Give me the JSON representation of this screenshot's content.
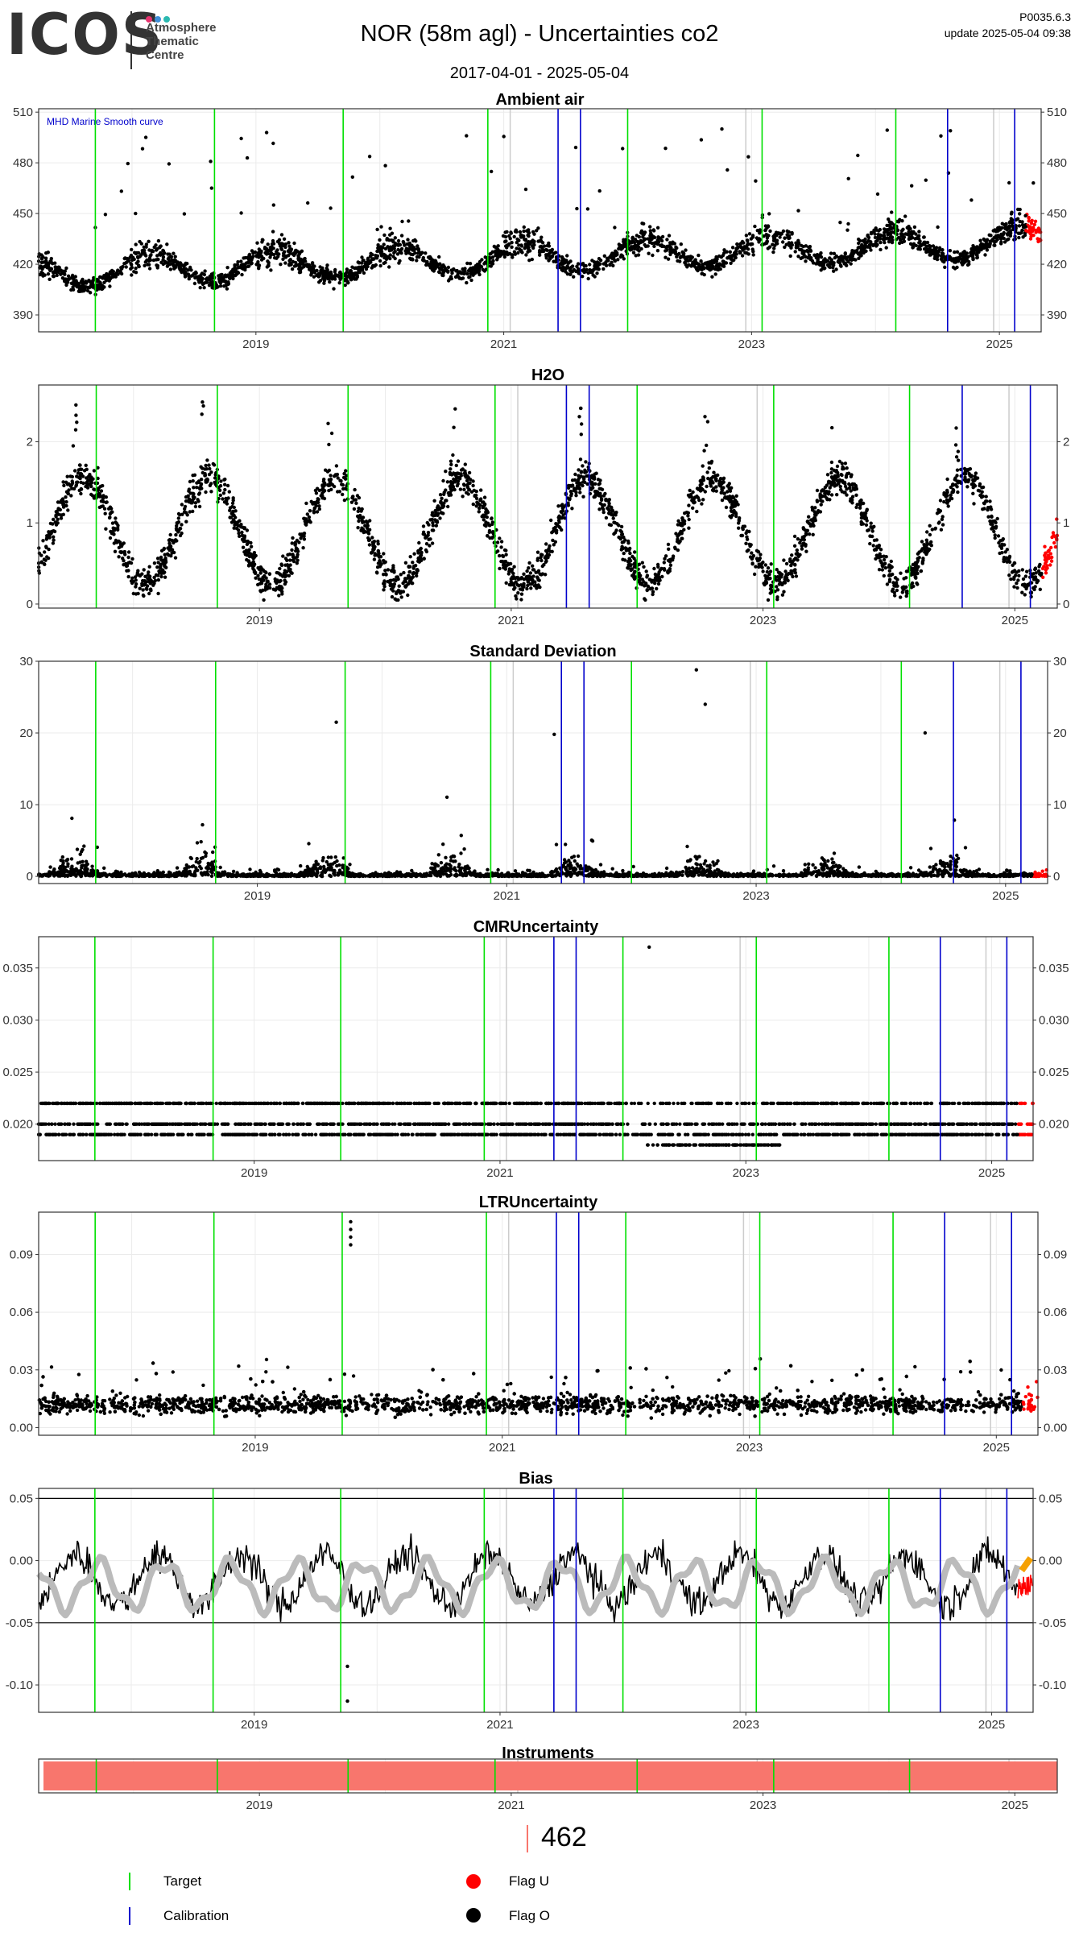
{
  "header": {
    "logo_text": "ICOS",
    "logo_sub": [
      "Atmosphere",
      "Thematic",
      "Centre"
    ],
    "logo_dot_colors": [
      "#e8336f",
      "#3f8fd8",
      "#2bb9b0"
    ],
    "title": "NOR  (58m agl) - Uncertainties co2",
    "date_range": "2017-04-01 - 2025-05-04",
    "version": "P0035.6.3",
    "update": "update  2025-05-04 09:38"
  },
  "colors": {
    "target": "#00e000",
    "calibration": "#0000cc",
    "flag_u": "#ff0000",
    "flag_o": "#000000",
    "bias_smooth": "#bbbbbb",
    "bias_recent": "#f5a000",
    "instrument": "#f8766d"
  },
  "x_axis": {
    "range": [
      "2017-04-01",
      "2025-05-04"
    ],
    "ticks": [
      "2019",
      "2021",
      "2023",
      "2025"
    ]
  },
  "events": {
    "target_dates": [
      "2017-09-15",
      "2018-09-01",
      "2019-09-15",
      "2020-11-15",
      "2022-01-01",
      "2023-02-01",
      "2024-03-01"
    ],
    "calibration_dates": [
      "2021-06-10",
      "2021-08-15",
      "2024-08-01",
      "2025-02-15"
    ],
    "gray_dates": [
      "2021-01-20",
      "2022-12-15",
      "2024-12-15"
    ]
  },
  "chart_data": [
    {
      "type": "scatter",
      "title": "Ambient air",
      "annotation": "MHD Marine Smooth curve",
      "ylim": [
        380,
        512
      ],
      "yticks": [
        "390",
        "420",
        "450",
        "480",
        "510"
      ],
      "right_axis": true,
      "seasonal": {
        "base": 415,
        "trend_per_year": 2.3,
        "amplitude": 9,
        "spread": 14,
        "outlier_max": 500
      }
    },
    {
      "type": "scatter",
      "title": "H2O",
      "ylim": [
        -0.05,
        2.7
      ],
      "yticks": [
        "0",
        "1",
        "2"
      ],
      "right_axis": true,
      "seasonal": {
        "base": 0.9,
        "amplitude": 0.65,
        "spread": 0.35
      }
    },
    {
      "type": "scatter",
      "title": "Standard Deviation",
      "ylim": [
        -1,
        30
      ],
      "yticks": [
        "0",
        "10",
        "20",
        "30"
      ],
      "right_axis": true,
      "spikes": [
        {
          "date": "2022-07-10",
          "value": 28.8
        },
        {
          "date": "2022-08-05",
          "value": 24
        },
        {
          "date": "2019-08-20",
          "value": 21.5
        },
        {
          "date": "2021-05-20",
          "value": 19.8
        },
        {
          "date": "2024-05-10",
          "value": 20
        }
      ]
    },
    {
      "type": "scatter",
      "title": "CMRUncertainty",
      "ylim": [
        0.0165,
        0.038
      ],
      "yticks": [
        "0.020",
        "0.025",
        "0.030",
        "0.035"
      ],
      "right_axis": true,
      "levels": [
        0.019,
        0.02,
        0.022
      ],
      "extra_point": {
        "date": "2022-03-20",
        "value": 0.037
      }
    },
    {
      "type": "scatter",
      "title": "LTRUncertainty",
      "ylim": [
        -0.004,
        0.112
      ],
      "yticks": [
        "0.00",
        "0.03",
        "0.06",
        "0.09"
      ],
      "right_axis": true,
      "cluster": {
        "date": "2019-10-10",
        "values": [
          0.095,
          0.099,
          0.103,
          0.107
        ]
      }
    },
    {
      "type": "line",
      "title": "Bias",
      "ylim": [
        -0.122,
        0.058
      ],
      "yticks": [
        "0.05",
        "0.00",
        "-0.05",
        "-0.10"
      ],
      "right_axis": true,
      "hlines": [
        0.05,
        -0.05
      ],
      "outliers": [
        {
          "date": "2019-10-05",
          "value": -0.085
        },
        {
          "date": "2019-10-05",
          "value": -0.113
        }
      ]
    },
    {
      "type": "bar",
      "title": "Instruments",
      "instrument_span": [
        "2017-04-15",
        "2025-05-04"
      ],
      "instrument_id": "462"
    }
  ],
  "legend": {
    "target": "Target",
    "calibration": "Calibration",
    "flag_u": "Flag U",
    "flag_o": "Flag O"
  }
}
